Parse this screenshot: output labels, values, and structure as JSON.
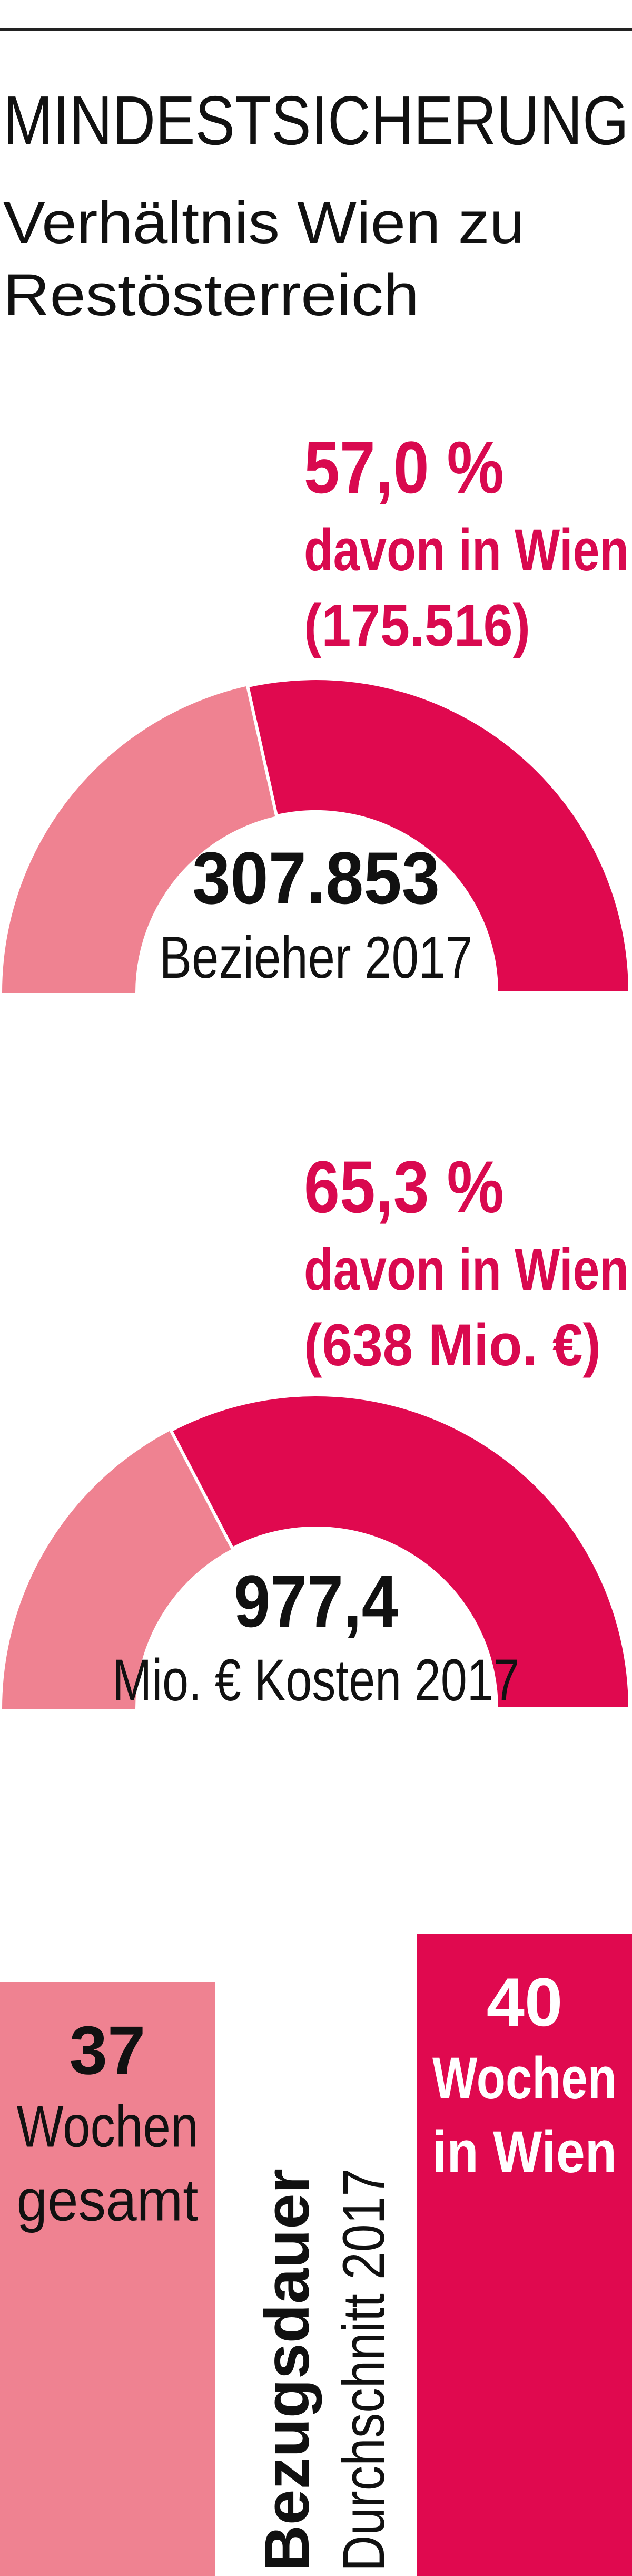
{
  "header": {
    "title": "MINDESTSICHERUNG",
    "subtitle": [
      "Verhältnis Wien zu",
      "Restösterreich"
    ]
  },
  "chart_data": [
    {
      "type": "gauge",
      "ylim": [
        0,
        100
      ],
      "value": 57.0,
      "value_label": "57,0 %",
      "lines": [
        "davon in Wien",
        "(175.516)"
      ],
      "center_value": "307.853",
      "center_caption": "Bezieher 2017",
      "colors": [
        "#e0094f",
        "#ef8291"
      ]
    },
    {
      "type": "gauge",
      "ylim": [
        0,
        100
      ],
      "value": 65.3,
      "value_label": "65,3 %",
      "lines": [
        "davon in Wien",
        "(638 Mio. €)"
      ],
      "center_value": "977,4",
      "center_caption": "Mio. € Kosten 2017",
      "colors": [
        "#e0094f",
        "#ef8291"
      ]
    },
    {
      "type": "bar",
      "title": "Bezugsdauer",
      "subtitle": "Durchschnitt 2017",
      "categories": [
        [
          "Wochen",
          "gesamt"
        ],
        [
          "Wochen",
          "in Wien"
        ]
      ],
      "values": [
        37,
        40
      ],
      "colors": [
        "#ef8291",
        "#e0094f"
      ],
      "ylim": [
        0,
        40
      ]
    }
  ]
}
